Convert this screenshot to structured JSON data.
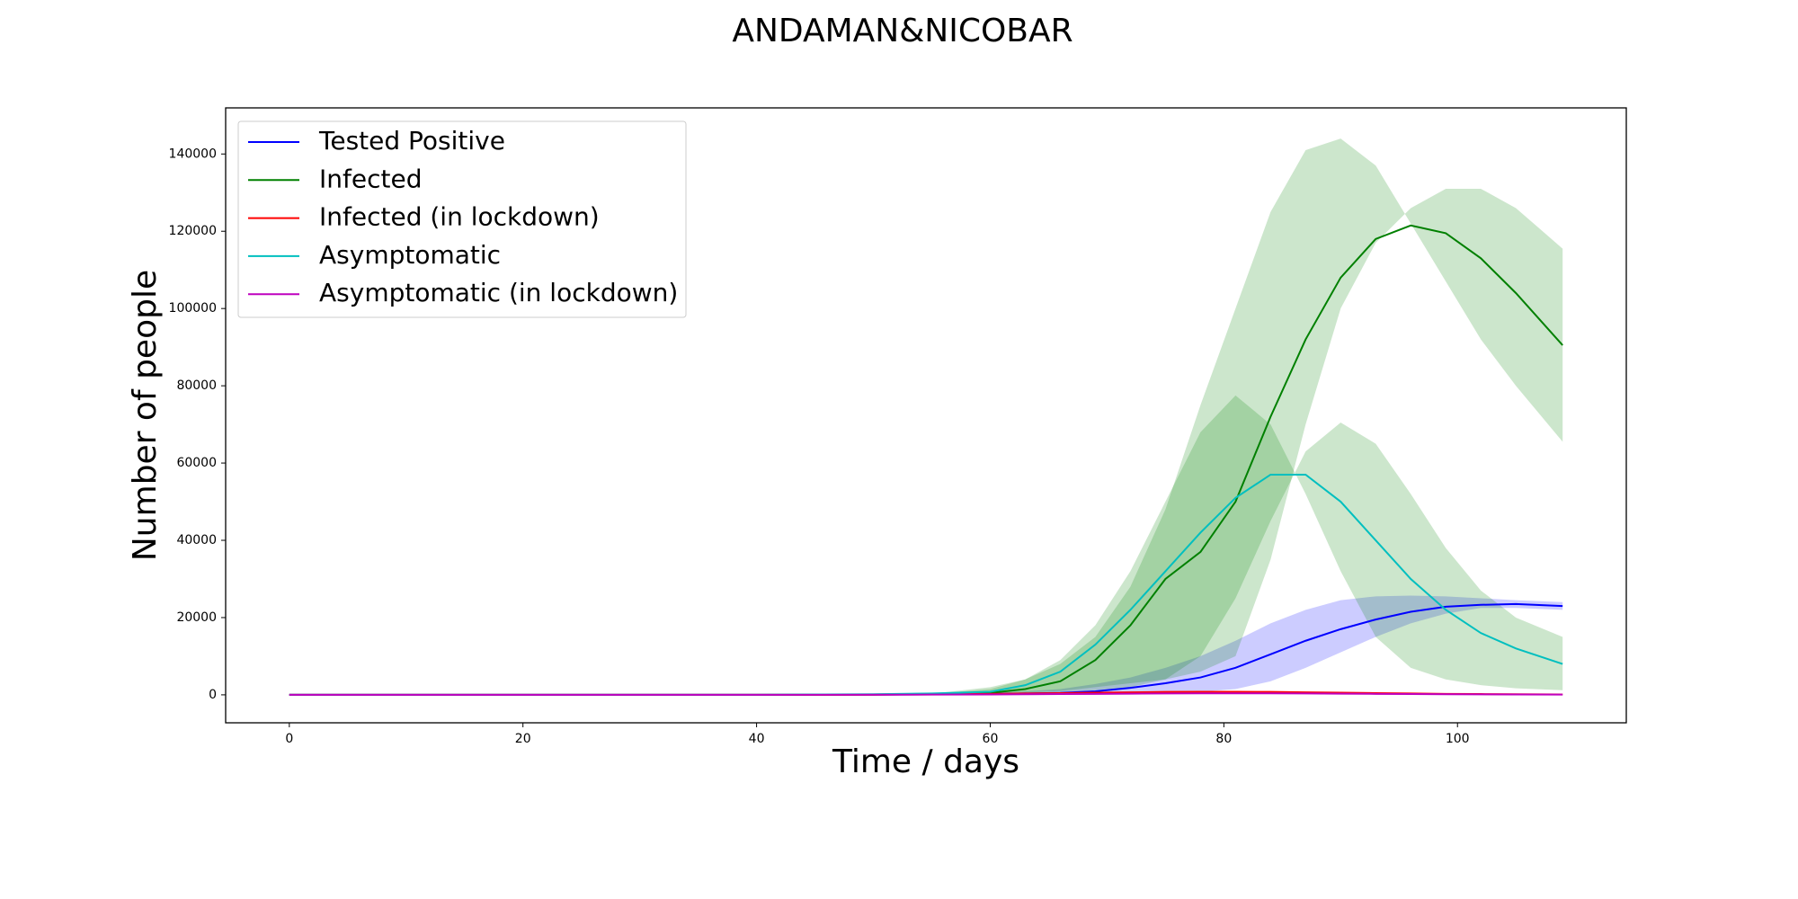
{
  "chart_data": {
    "type": "line",
    "title": "ANDAMAN&NICOBAR",
    "x_label": "Time / days",
    "y_label": "Number of people",
    "x": [
      0,
      10,
      20,
      30,
      40,
      50,
      55,
      60,
      63,
      66,
      69,
      72,
      75,
      78,
      81,
      84,
      87,
      90,
      93,
      96,
      99,
      102,
      105,
      109
    ],
    "xlim": [
      -5.45,
      114.45
    ],
    "xticks": [
      0,
      20,
      40,
      60,
      80,
      100
    ],
    "ylim": [
      -7235,
      151935
    ],
    "yticks": [
      0,
      20000,
      40000,
      60000,
      80000,
      100000,
      120000,
      140000
    ],
    "legend": "upper left",
    "grid": false,
    "series": [
      {
        "name": "Tested Positive",
        "color": "#0000ff",
        "band_color": "#0000ff",
        "values": [
          0,
          0,
          0,
          0,
          0,
          50,
          100,
          200,
          350,
          500,
          900,
          1800,
          3000,
          4500,
          7000,
          10500,
          14000,
          17000,
          19500,
          21500,
          22800,
          23300,
          23500,
          23000
        ],
        "band_high": [
          0,
          0,
          0,
          0,
          50,
          150,
          300,
          500,
          900,
          1500,
          2800,
          4500,
          7000,
          10000,
          14000,
          18500,
          22000,
          24500,
          25500,
          25700,
          25500,
          25000,
          24500,
          24000
        ],
        "band_low": [
          0,
          0,
          0,
          0,
          0,
          0,
          0,
          0,
          50,
          100,
          200,
          300,
          500,
          800,
          1500,
          3500,
          7000,
          11000,
          15000,
          18500,
          21000,
          22500,
          22500,
          22000
        ]
      },
      {
        "name": "Infected",
        "color": "#008000",
        "band_color": "#008000",
        "values": [
          0,
          0,
          0,
          0,
          0,
          100,
          250,
          500,
          1500,
          3500,
          9000,
          18000,
          30000,
          37000,
          50000,
          72000,
          92000,
          108000,
          118000,
          121500,
          119500,
          113000,
          104000,
          90500
        ],
        "band_high": [
          0,
          0,
          0,
          0,
          50,
          200,
          300,
          2000,
          4000,
          8000,
          15000,
          28000,
          48000,
          75000,
          100000,
          125000,
          141000,
          144000,
          137000,
          122000,
          107000,
          92000,
          80000,
          65500
        ],
        "band_low": [
          0,
          0,
          0,
          0,
          0,
          0,
          0,
          300,
          600,
          1000,
          2000,
          3000,
          4000,
          6000,
          10000,
          35000,
          70000,
          100000,
          117000,
          126000,
          131000,
          131000,
          126000,
          115500
        ]
      },
      {
        "name": "Infected (in lockdown)",
        "color": "#ff0000",
        "values": [
          0,
          0,
          0,
          0,
          0,
          50,
          150,
          250,
          350,
          450,
          550,
          650,
          750,
          800,
          800,
          750,
          650,
          550,
          450,
          350,
          250,
          200,
          150,
          100
        ]
      },
      {
        "name": "Asymptomatic",
        "color": "#00bfbf",
        "band_color": "#008000",
        "values": [
          0,
          0,
          0,
          0,
          0,
          150,
          350,
          800,
          2500,
          6000,
          13000,
          22000,
          32000,
          42000,
          51000,
          57000,
          57000,
          50000,
          40000,
          30000,
          22000,
          16000,
          12000,
          8000
        ],
        "band_high": [
          0,
          0,
          0,
          0,
          50,
          100,
          200,
          1500,
          4000,
          9000,
          18000,
          32000,
          50000,
          68000,
          77500,
          70000,
          52000,
          32000,
          15000,
          7000,
          4000,
          2500,
          1700,
          1200
        ],
        "band_low": [
          0,
          0,
          0,
          0,
          0,
          0,
          0,
          200,
          400,
          700,
          1200,
          2000,
          4000,
          10000,
          25000,
          45000,
          63000,
          70500,
          65000,
          52000,
          38000,
          27000,
          20000,
          15000
        ]
      },
      {
        "name": "Asymptomatic (in lockdown)",
        "color": "#bf00bf",
        "values": [
          0,
          0,
          0,
          0,
          0,
          30,
          60,
          100,
          150,
          200,
          250,
          300,
          350,
          380,
          400,
          380,
          350,
          300,
          250,
          200,
          150,
          120,
          100,
          80
        ]
      }
    ]
  }
}
